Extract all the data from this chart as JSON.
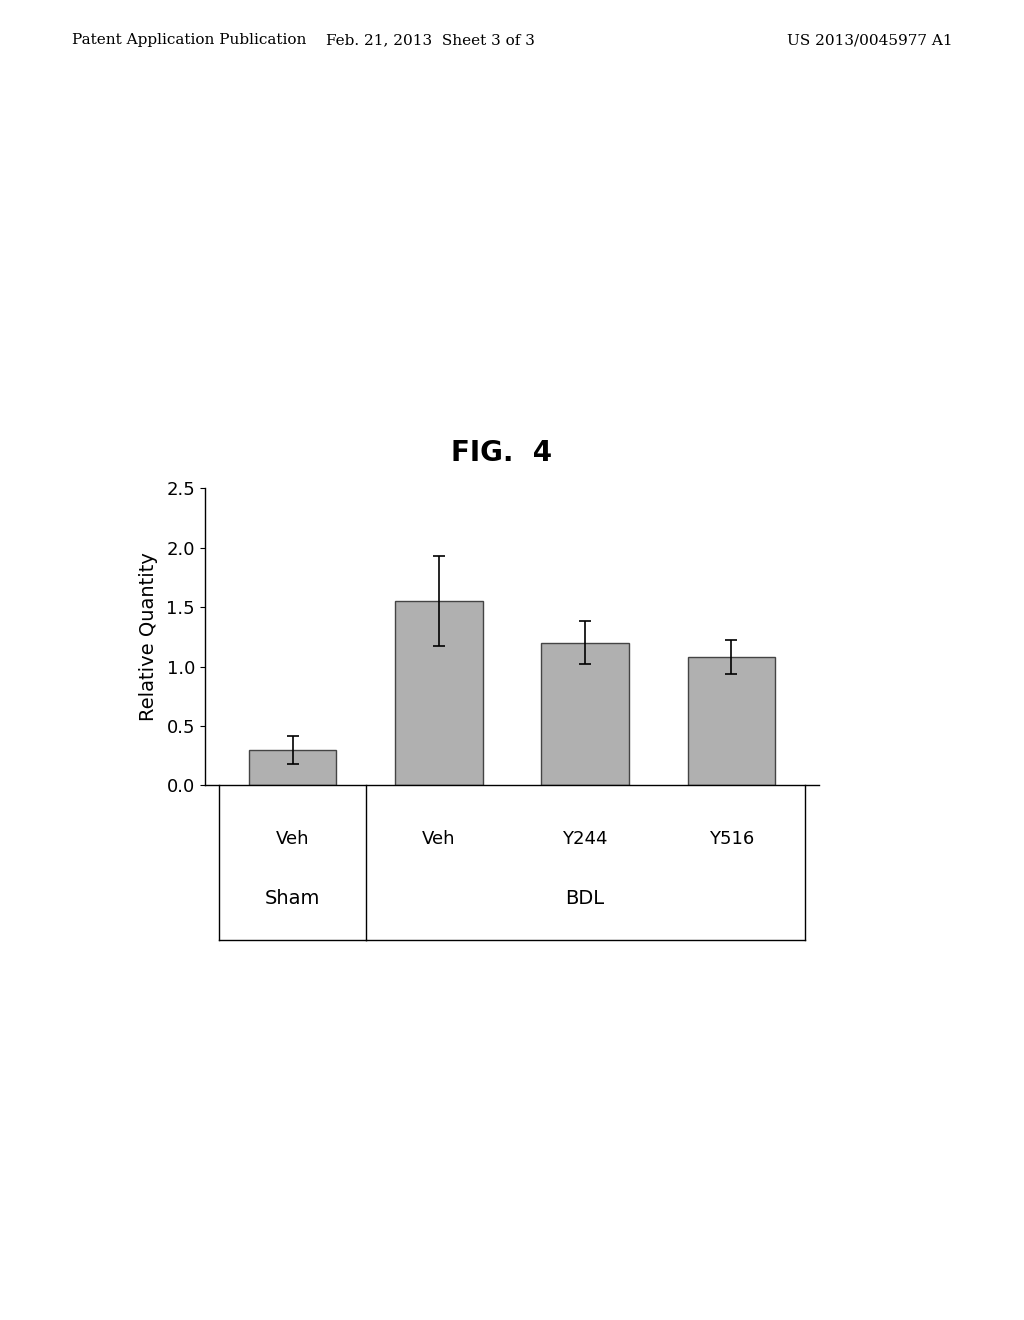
{
  "title": "FIG.  4",
  "ylabel": "Relative Quantity",
  "bar_labels": [
    "Veh",
    "Veh",
    "Y244",
    "Y516"
  ],
  "bar_values": [
    0.3,
    1.55,
    1.2,
    1.08
  ],
  "bar_errors": [
    0.12,
    0.38,
    0.18,
    0.14
  ],
  "bar_color": "#b0b0b0",
  "bar_edgecolor": "#444444",
  "ylim": [
    0.0,
    2.5
  ],
  "yticks": [
    0.0,
    0.5,
    1.0,
    1.5,
    2.0,
    2.5
  ],
  "background_color": "#ffffff",
  "title_fontsize": 20,
  "ylabel_fontsize": 14,
  "tick_fontsize": 13,
  "group_label_fontsize": 14,
  "bar_label_fontsize": 13,
  "header_left": "Patent Application Publication",
  "header_center": "Feb. 21, 2013  Sheet 3 of 3",
  "header_right": "US 2013/0045977 A1",
  "header_fontsize": 11
}
